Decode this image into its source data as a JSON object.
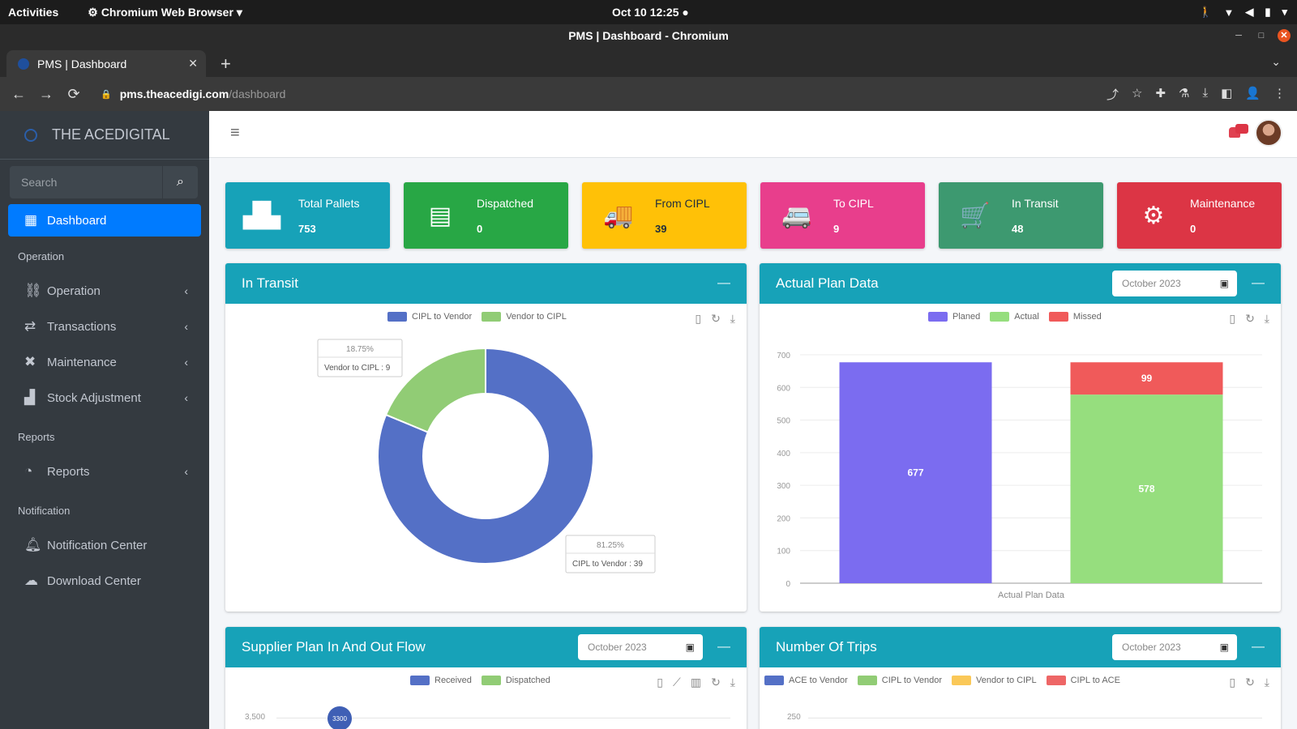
{
  "os": {
    "activities": "Activities",
    "app_name": "Chromium Web Browser",
    "clock": "Oct 10  12:25",
    "tray": {
      "accessibility": "🚶",
      "network": "▼",
      "volume": "◀",
      "battery": "▮"
    }
  },
  "browser": {
    "window_title": "PMS | Dashboard - Chromium",
    "tab_title": "PMS | Dashboard",
    "url_host": "pms.theacedigi.com",
    "url_path": "/dashboard"
  },
  "sidebar": {
    "brand": "THE ACEDIGITAL",
    "search_placeholder": "Search",
    "dashboard_label": "Dashboard",
    "sections": [
      {
        "header": "Operation",
        "items": [
          {
            "label": "Operation",
            "icon": "sitemap-icon",
            "has_submenu": true
          },
          {
            "label": "Transactions",
            "icon": "exchange-icon",
            "has_submenu": true
          },
          {
            "label": "Maintenance",
            "icon": "tools-icon",
            "has_submenu": true
          },
          {
            "label": "Stock Adjustment",
            "icon": "boxes-icon",
            "has_submenu": true
          }
        ]
      },
      {
        "header": "Reports",
        "items": [
          {
            "label": "Reports",
            "icon": "pie-chart-icon",
            "has_submenu": true
          }
        ]
      },
      {
        "header": "Notification",
        "items": [
          {
            "label": "Notification Center",
            "icon": "bell-icon",
            "has_submenu": false
          },
          {
            "label": "Download Center",
            "icon": "cloud-download-icon",
            "has_submenu": false
          }
        ]
      }
    ]
  },
  "stats": [
    {
      "label": "Total Pallets",
      "value": "753",
      "color": "#17a2b8",
      "icon": "pallets-icon",
      "glyph": "▟▙"
    },
    {
      "label": "Dispatched",
      "value": "0",
      "color": "#28a745",
      "icon": "document-icon",
      "glyph": "▤"
    },
    {
      "label": "From CIPL",
      "value": "39",
      "color": "#ffc107",
      "icon": "truck-icon",
      "glyph": "🚚"
    },
    {
      "label": "To CIPL",
      "value": "9",
      "color": "#e83e8c",
      "icon": "van-icon",
      "glyph": "🚐"
    },
    {
      "label": "In Transit",
      "value": "48",
      "color": "#3d9970",
      "icon": "cart-icon",
      "glyph": "🛒"
    },
    {
      "label": "Maintenance",
      "value": "0",
      "color": "#dc3545",
      "icon": "gear-icon",
      "glyph": "⚙"
    }
  ],
  "cards": {
    "in_transit": {
      "title": "In Transit",
      "legend": [
        {
          "name": "CIPL to Vendor",
          "color": "#5470c6"
        },
        {
          "name": "Vendor to CIPL",
          "color": "#91cc75"
        }
      ],
      "tooltips": [
        {
          "percent": "18.75%",
          "text": "Vendor to CIPL : 9"
        },
        {
          "percent": "81.25%",
          "text": "CIPL to Vendor : 39"
        }
      ]
    },
    "actual_plan": {
      "title": "Actual Plan Data",
      "date": "October 2023",
      "legend": [
        {
          "name": "Planed",
          "color": "#7b6cf0"
        },
        {
          "name": "Actual",
          "color": "#96de7e"
        },
        {
          "name": "Missed",
          "color": "#f05a5a"
        }
      ],
      "xlabel": "Actual Plan Data",
      "labels": {
        "planed": "677",
        "actual": "578",
        "missed": "99"
      }
    },
    "supplier_flow": {
      "title": "Supplier Plan In And Out Flow",
      "date": "October 2023",
      "legend": [
        {
          "name": "Received",
          "color": "#5470c6"
        },
        {
          "name": "Dispatched",
          "color": "#91cc75"
        }
      ],
      "y_tick": "3,500",
      "point_label": "3300"
    },
    "trips": {
      "title": "Number Of Trips",
      "date": "October 2023",
      "legend": [
        {
          "name": "ACE to Vendor",
          "color": "#5470c6"
        },
        {
          "name": "CIPL to Vendor",
          "color": "#91cc75"
        },
        {
          "name": "Vendor to CIPL",
          "color": "#fac858"
        },
        {
          "name": "CIPL to ACE",
          "color": "#ee6666"
        }
      ],
      "y_tick": "250"
    }
  },
  "chart_data": [
    {
      "type": "pie",
      "categories": [
        "CIPL to Vendor",
        "Vendor to CIPL"
      ],
      "values": [
        39,
        9
      ],
      "percentages": [
        81.25,
        18.75
      ],
      "colors": [
        "#5470c6",
        "#91cc75"
      ],
      "donut": true,
      "title": "In Transit"
    },
    {
      "type": "bar",
      "stacked": true,
      "categories": [
        "Planed",
        "Actual"
      ],
      "series": [
        {
          "name": "Planed",
          "values": [
            677,
            0
          ],
          "color": "#7b6cf0"
        },
        {
          "name": "Actual",
          "values": [
            0,
            578
          ],
          "color": "#96de7e"
        },
        {
          "name": "Missed",
          "values": [
            0,
            99
          ],
          "color": "#f05a5a"
        }
      ],
      "xlabel": "Actual Plan Data",
      "yticks": [
        0,
        100,
        200,
        300,
        400,
        500,
        600,
        700
      ],
      "ylim": [
        0,
        700
      ],
      "title": "Actual Plan Data"
    }
  ]
}
